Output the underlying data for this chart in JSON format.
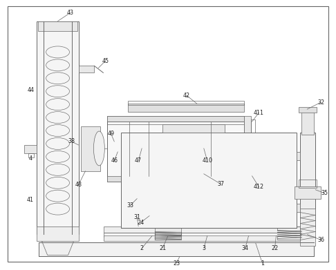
{
  "fig_width": 4.86,
  "fig_height": 3.91,
  "dpi": 100,
  "bg_color": "#ffffff",
  "lc": "#666666",
  "lw": 0.7,
  "lw_thin": 0.5,
  "fs": 5.8
}
